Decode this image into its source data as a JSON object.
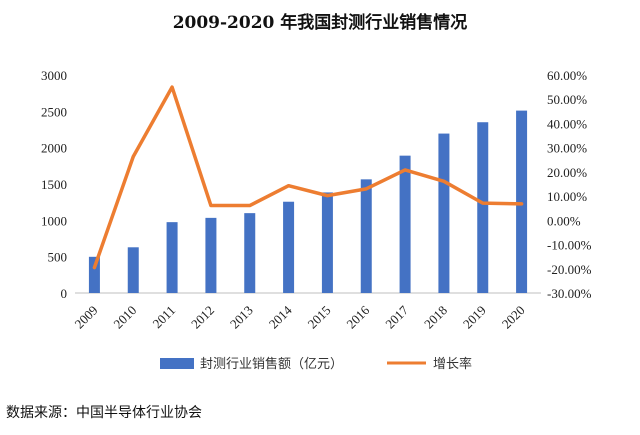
{
  "source_text": "数据来源：中国半导体行业协会",
  "chart_data": {
    "type": "bar",
    "title": "2009-2020 年我国封测行业销售情况",
    "categories": [
      "2009",
      "2010",
      "2011",
      "2012",
      "2013",
      "2014",
      "2015",
      "2016",
      "2017",
      "2018",
      "2019",
      "2020"
    ],
    "series": [
      {
        "name": "封测行业销售额（亿元）",
        "type": "bar",
        "axis": "left",
        "color": "#4472C4",
        "values": [
          498,
          629,
          975,
          1034,
          1099,
          1256,
          1384,
          1564,
          1890,
          2194,
          2350,
          2510
        ]
      },
      {
        "name": "增长率",
        "type": "line",
        "axis": "right",
        "color": "#ED7D31",
        "values": [
          -19.5,
          26.3,
          55.0,
          6.1,
          6.1,
          14.3,
          10.2,
          13.0,
          20.8,
          16.1,
          7.1,
          6.8
        ]
      }
    ],
    "y_left": {
      "min": 0,
      "max": 3000,
      "ticks": [
        0,
        500,
        1000,
        1500,
        2000,
        2500,
        3000
      ]
    },
    "y_right": {
      "min": -30,
      "max": 60,
      "ticks": [
        -30,
        -20,
        -10,
        0,
        10,
        20,
        30,
        40,
        50,
        60
      ],
      "tick_labels": [
        "-30.00%",
        "-20.00%",
        "-10.00%",
        "0.00%",
        "10.00%",
        "20.00%",
        "30.00%",
        "40.00%",
        "50.00%",
        "60.00%"
      ]
    },
    "grid": false,
    "legend": "bottom"
  }
}
